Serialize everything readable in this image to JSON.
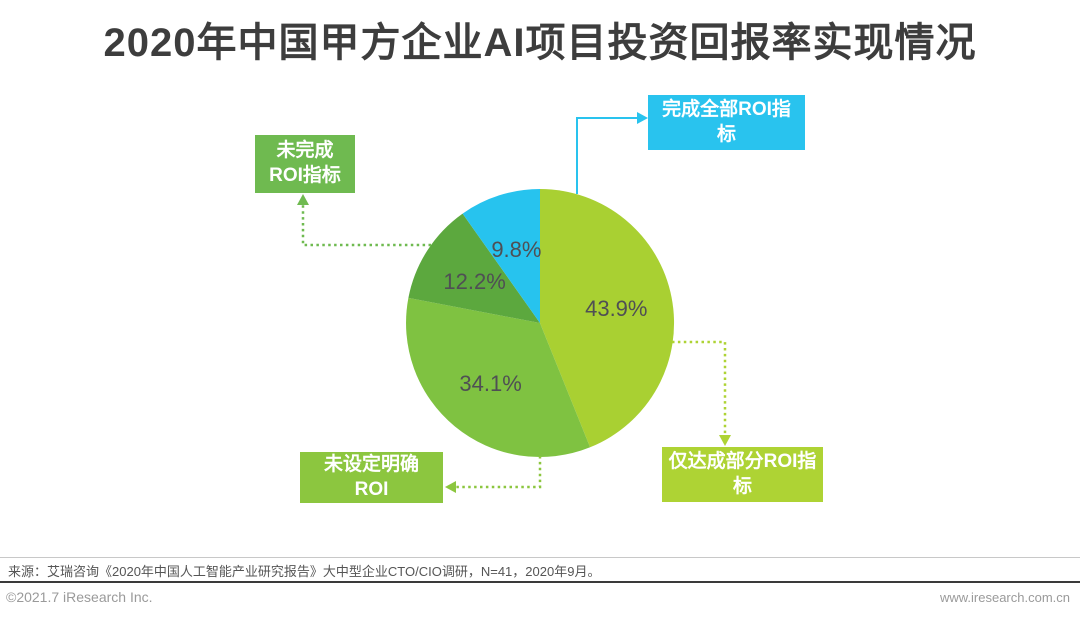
{
  "title": "2020年中国甲方企业AI项目投资回报率实现情况",
  "chart_data": {
    "type": "pie",
    "title": "2020年中国甲方企业AI项目投资回报率实现情况",
    "labels": [
      "仅达成部分ROI指标",
      "未设定明确ROI",
      "未完成ROI指标",
      "完成全部ROI指标"
    ],
    "values": [
      43.9,
      34.1,
      12.2,
      9.8
    ],
    "value_labels": [
      "43.9%",
      "34.1%",
      "12.2%",
      "9.8%"
    ],
    "colors": [
      "#a9d032",
      "#7fc241",
      "#5ca83e",
      "#27c3ee"
    ],
    "start_angle_deg": 0,
    "direction": "clockwise",
    "legend_position": "callout-boxes",
    "unit": "percent",
    "sample_note": "N=41"
  },
  "callouts": {
    "complete": {
      "text": "完成全部ROI指\n标",
      "color": "#29c3ee"
    },
    "incomplete": {
      "text": "未完成\nROI指标",
      "color": "#6fba50"
    },
    "no_roi": {
      "text": "未设定明确\nROI",
      "color": "#8cc63f"
    },
    "partial": {
      "text": "仅达成部分ROI指\n标",
      "color": "#aed334"
    }
  },
  "footer": {
    "source": "来源：艾瑞咨询《2020年中国人工智能产业研究报告》大中型企业CTO/CIO调研，N=41，2020年9月。",
    "copyright": "©2021.7 iResearch Inc.",
    "website": "www.iresearch.com.cn"
  }
}
